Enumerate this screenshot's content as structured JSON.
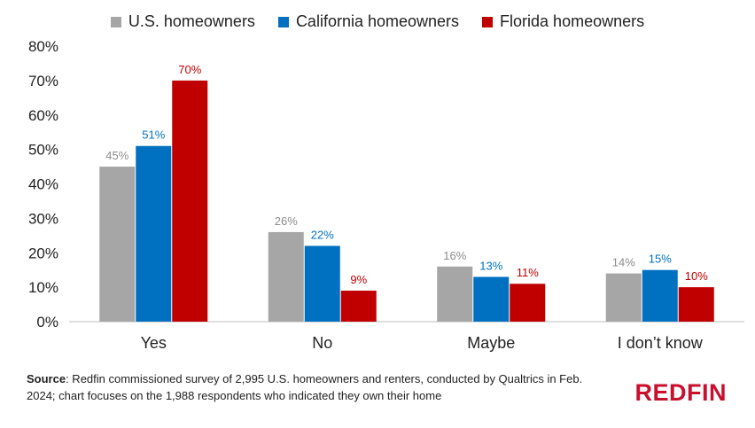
{
  "chart_data": {
    "type": "bar",
    "categories": [
      "Yes",
      "No",
      "Maybe",
      "I don’t know"
    ],
    "series": [
      {
        "name": "U.S. homeowners",
        "color": "#a6a6a6",
        "label_color": "#8c8c8c",
        "values": [
          45,
          26,
          16,
          14
        ]
      },
      {
        "name": "California homeowners",
        "color": "#0070c0",
        "label_color": "#0070c0",
        "values": [
          51,
          22,
          13,
          15
        ]
      },
      {
        "name": "Florida homeowners",
        "color": "#c00000",
        "label_color": "#c00000",
        "values": [
          70,
          9,
          11,
          10
        ]
      }
    ],
    "yticks": [
      "0%",
      "10%",
      "20%",
      "30%",
      "40%",
      "50%",
      "60%",
      "70%",
      "80%"
    ],
    "ylim": [
      0,
      80
    ],
    "legend_position": "top-center",
    "grid": false
  },
  "footer": {
    "source_label": "Source",
    "source_text": ": Redfin commissioned survey of 2,995 U.S. homeowners and renters, conducted by Qualtrics in Feb. 2024; chart focuses on the 1,988 respondents who indicated they own their home"
  },
  "brand": {
    "logo_text": "REDFIN",
    "color": "#c8102e"
  }
}
